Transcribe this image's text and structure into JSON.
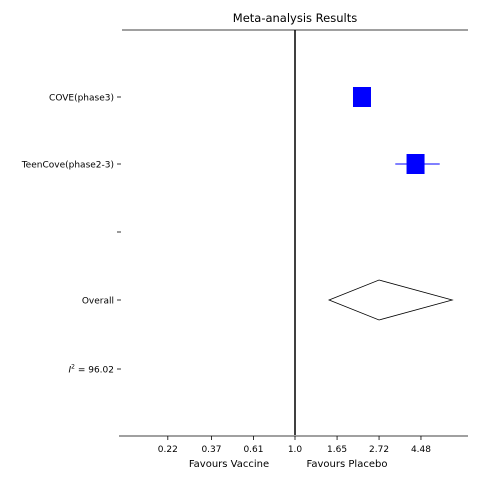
{
  "chart_data": {
    "type": "forest",
    "title": "Meta-analysis Results",
    "scale": "log",
    "x_ticks": [
      0.22,
      0.37,
      0.61,
      1.0,
      1.65,
      2.72,
      4.48
    ],
    "x_tick_labels": [
      "0.22",
      "0.37",
      "0.61",
      "1.0",
      "1.65",
      "2.72",
      "4.48"
    ],
    "xlim": [
      0.14,
      7.5
    ],
    "xlabel_left": "Favours Vaccine",
    "xlabel_right": "Favours Placebo",
    "reference_line": 1.0,
    "studies": [
      {
        "label": "COVE(phase3)",
        "estimate": 2.22,
        "ci_low": 2.22,
        "ci_high": 2.22,
        "marker": "square",
        "color": "#0000ff"
      },
      {
        "label": "TeenCove(phase2-3)",
        "estimate": 4.2,
        "ci_low": 3.3,
        "ci_high": 5.6,
        "marker": "square",
        "color": "#0000ff"
      }
    ],
    "blank_row_label": "",
    "overall": {
      "label": "Overall",
      "estimate": 2.72,
      "ci_low": 1.5,
      "ci_high": 6.5
    },
    "heterogeneity": {
      "symbol": "I",
      "superscript": "2",
      "value_text": " = 96.02"
    },
    "grid": false
  }
}
